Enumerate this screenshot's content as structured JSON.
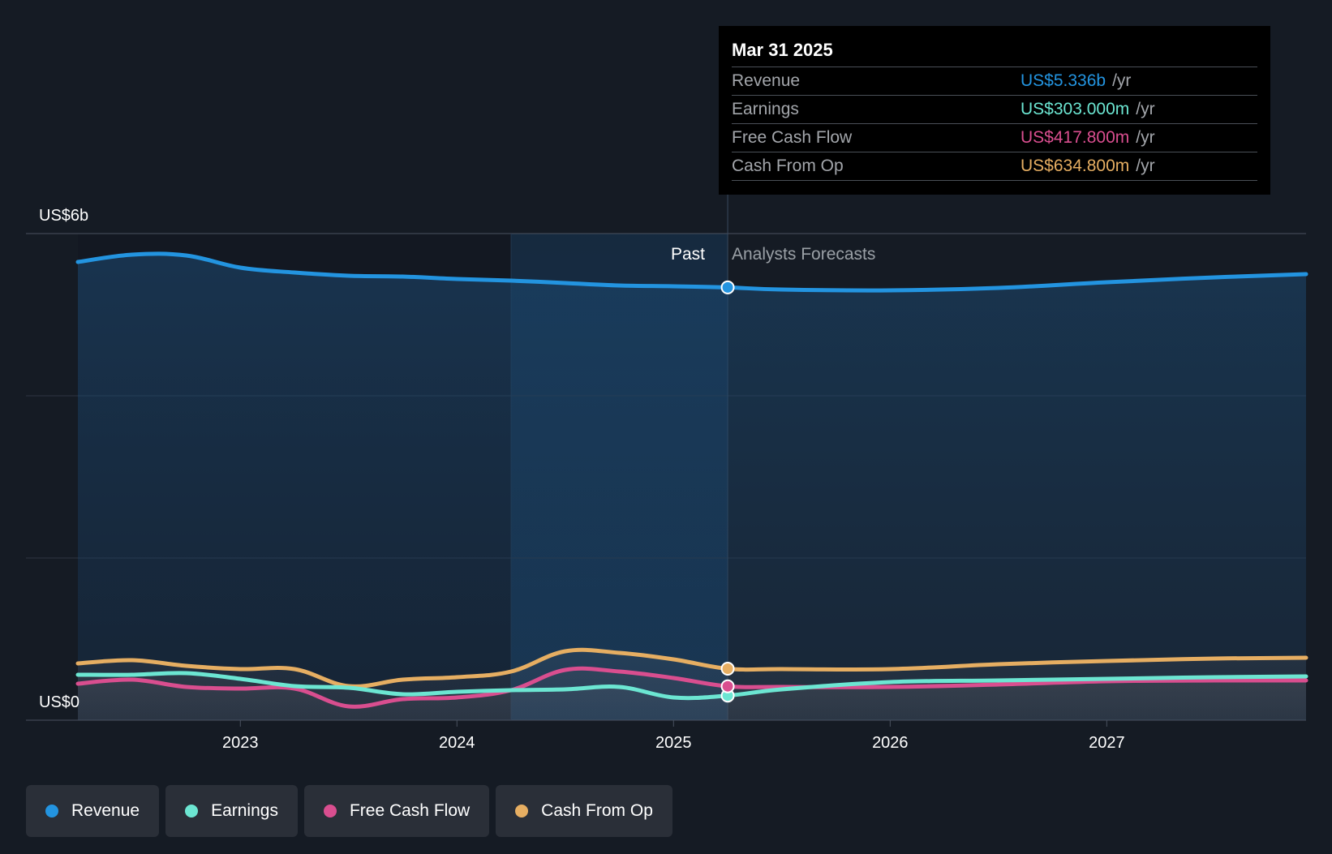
{
  "tooltip": {
    "date": "Mar 31 2025",
    "rows": [
      {
        "label": "Revenue",
        "value": "US$5.336b",
        "unit": "/yr",
        "color": "#2394e0"
      },
      {
        "label": "Earnings",
        "value": "US$303.000m",
        "unit": "/yr",
        "color": "#6ce6d2"
      },
      {
        "label": "Free Cash Flow",
        "value": "US$417.800m",
        "unit": "/yr",
        "color": "#d94e8f"
      },
      {
        "label": "Cash From Op",
        "value": "US$634.800m",
        "unit": "/yr",
        "color": "#e6ae62"
      }
    ]
  },
  "legend": [
    {
      "label": "Revenue",
      "color": "#2394e0"
    },
    {
      "label": "Earnings",
      "color": "#6ce6d2"
    },
    {
      "label": "Free Cash Flow",
      "color": "#d94e8f"
    },
    {
      "label": "Cash From Op",
      "color": "#e6ae62"
    }
  ],
  "chart_data": {
    "type": "line",
    "y_unit_labels": {
      "top": "US$6b",
      "bottom": "US$0"
    },
    "ylim": [
      0,
      6000
    ],
    "xlim": [
      2022.25,
      2027.92
    ],
    "x_ticks": [
      2023,
      2024,
      2025,
      2026,
      2027
    ],
    "x_tick_labels": [
      "2023",
      "2024",
      "2025",
      "2026",
      "2027"
    ],
    "grid": true,
    "past_label": "Past",
    "forecast_label": "Analysts Forecasts",
    "divider_x": 2025.25,
    "highlight_start_x": 2024.25,
    "series": [
      {
        "name": "Revenue",
        "color": "#2394e0",
        "points": [
          [
            2022.25,
            5650
          ],
          [
            2022.5,
            5740
          ],
          [
            2022.75,
            5730
          ],
          [
            2023.0,
            5580
          ],
          [
            2023.25,
            5520
          ],
          [
            2023.5,
            5480
          ],
          [
            2023.75,
            5470
          ],
          [
            2024.0,
            5440
          ],
          [
            2024.25,
            5420
          ],
          [
            2024.5,
            5390
          ],
          [
            2024.75,
            5360
          ],
          [
            2025.0,
            5350
          ],
          [
            2025.25,
            5336
          ],
          [
            2025.5,
            5310
          ],
          [
            2026.0,
            5300
          ],
          [
            2026.5,
            5330
          ],
          [
            2027.0,
            5400
          ],
          [
            2027.5,
            5460
          ],
          [
            2027.92,
            5500
          ]
        ]
      },
      {
        "name": "Earnings",
        "color": "#6ce6d2",
        "points": [
          [
            2022.25,
            560
          ],
          [
            2022.5,
            560
          ],
          [
            2022.75,
            580
          ],
          [
            2023.0,
            510
          ],
          [
            2023.25,
            420
          ],
          [
            2023.5,
            400
          ],
          [
            2023.75,
            320
          ],
          [
            2024.0,
            350
          ],
          [
            2024.25,
            370
          ],
          [
            2024.5,
            380
          ],
          [
            2024.75,
            410
          ],
          [
            2025.0,
            280
          ],
          [
            2025.25,
            303
          ],
          [
            2025.5,
            380
          ],
          [
            2026.0,
            470
          ],
          [
            2026.5,
            490
          ],
          [
            2027.0,
            510
          ],
          [
            2027.5,
            530
          ],
          [
            2027.92,
            540
          ]
        ]
      },
      {
        "name": "Free Cash Flow",
        "color": "#d94e8f",
        "points": [
          [
            2022.25,
            450
          ],
          [
            2022.5,
            500
          ],
          [
            2022.75,
            410
          ],
          [
            2023.0,
            390
          ],
          [
            2023.25,
            390
          ],
          [
            2023.5,
            170
          ],
          [
            2023.75,
            260
          ],
          [
            2024.0,
            280
          ],
          [
            2024.25,
            370
          ],
          [
            2024.5,
            620
          ],
          [
            2024.75,
            600
          ],
          [
            2025.0,
            520
          ],
          [
            2025.25,
            418
          ],
          [
            2025.5,
            410
          ],
          [
            2026.0,
            410
          ],
          [
            2026.5,
            440
          ],
          [
            2027.0,
            480
          ],
          [
            2027.5,
            490
          ],
          [
            2027.92,
            490
          ]
        ]
      },
      {
        "name": "Cash From Op",
        "color": "#e6ae62",
        "points": [
          [
            2022.25,
            700
          ],
          [
            2022.5,
            740
          ],
          [
            2022.75,
            670
          ],
          [
            2023.0,
            630
          ],
          [
            2023.25,
            630
          ],
          [
            2023.5,
            420
          ],
          [
            2023.75,
            500
          ],
          [
            2024.0,
            530
          ],
          [
            2024.25,
            600
          ],
          [
            2024.5,
            850
          ],
          [
            2024.75,
            830
          ],
          [
            2025.0,
            750
          ],
          [
            2025.25,
            635
          ],
          [
            2025.5,
            630
          ],
          [
            2026.0,
            630
          ],
          [
            2026.5,
            690
          ],
          [
            2027.0,
            730
          ],
          [
            2027.5,
            760
          ],
          [
            2027.92,
            770
          ]
        ]
      }
    ]
  }
}
